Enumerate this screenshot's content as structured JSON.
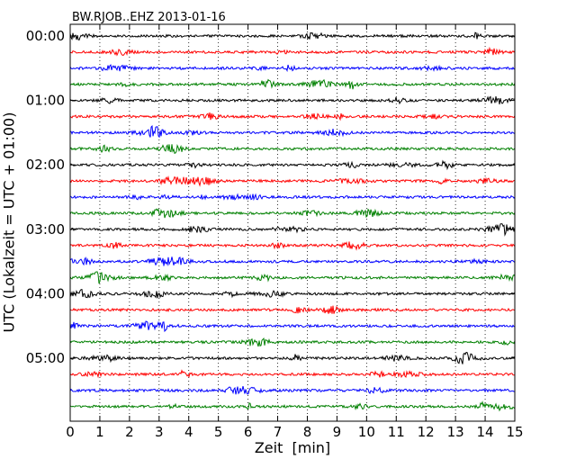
{
  "chart_data": {
    "type": "line",
    "title": "BW.RJOB..EHZ 2013-01-16",
    "xlabel": "Zeit  [min]",
    "ylabel": "UTC (Lokalzeit = UTC + 01:00)",
    "xlim": [
      0,
      15
    ],
    "x_ticks": [
      "0",
      "1",
      "2",
      "3",
      "4",
      "5",
      "6",
      "7",
      "8",
      "9",
      "10",
      "11",
      "12",
      "13",
      "14",
      "15"
    ],
    "y_ticks": [
      {
        "label": "00:00",
        "row": 0
      },
      {
        "label": "01:00",
        "row": 4
      },
      {
        "label": "02:00",
        "row": 8
      },
      {
        "label": "03:00",
        "row": 12
      },
      {
        "label": "04:00",
        "row": 16
      },
      {
        "label": "05:00",
        "row": 20
      }
    ],
    "trace_interval_minutes": 15,
    "trace_count": 24,
    "trace_colors": [
      "#000000",
      "#ff0000",
      "#0000ff",
      "#008000"
    ],
    "vertical_grid": true,
    "grid_style": "dotted"
  }
}
